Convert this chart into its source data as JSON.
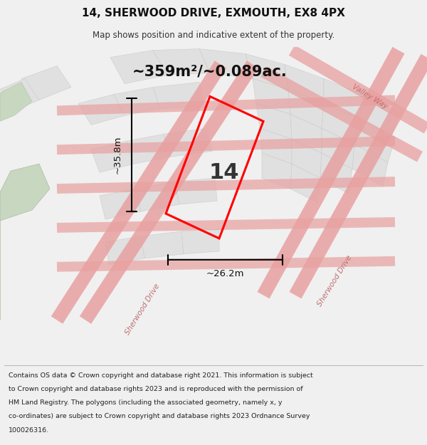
{
  "title": "14, SHERWOOD DRIVE, EXMOUTH, EX8 4PX",
  "subtitle": "Map shows position and indicative extent of the property.",
  "area_text": "~359m²/~0.089ac.",
  "width_label": "~26.2m",
  "height_label": "~35.8m",
  "number_label": "14",
  "footer_lines": [
    "Contains OS data © Crown copyright and database right 2021. This information is subject",
    "to Crown copyright and database rights 2023 and is reproduced with the permission of",
    "HM Land Registry. The polygons (including the associated geometry, namely x, y",
    "co-ordinates) are subject to Crown copyright and database rights 2023 Ordnance Survey",
    "100026316."
  ],
  "bg_color": "#f0f0f0",
  "map_bg": "#ffffff",
  "plot_color": "#ff0000",
  "road_color": "#e8a0a0",
  "block_fill": "#e0e0e0",
  "block_edge": "#cccccc",
  "green_fill": "#c8d8c0",
  "footer_bg": "#ffffff",
  "road_label_color": "#c07070",
  "dim_color": "#111111",
  "number_color": "#333333",
  "area_color": "#111111"
}
